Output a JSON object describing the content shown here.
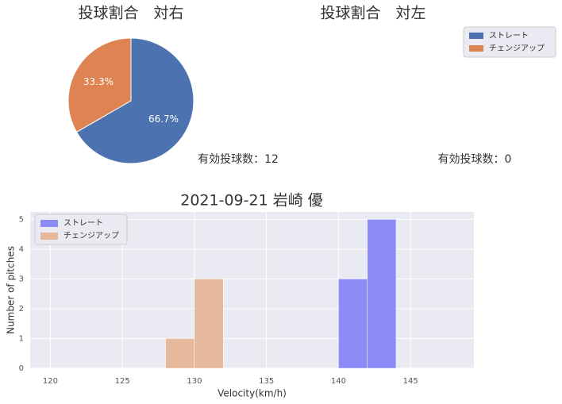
{
  "chart_data": [
    {
      "type": "pie",
      "title": "投球割合　対右",
      "categories": [
        "ストレート",
        "チェンジアップ"
      ],
      "values": [
        66.7,
        33.3
      ],
      "value_labels": [
        "66.7%",
        "33.3%"
      ],
      "colors": [
        "#4c72b0",
        "#dd8452"
      ],
      "annotation": "有効投球数：12"
    },
    {
      "type": "pie",
      "title": "投球割合　対左",
      "categories": [
        "ストレート",
        "チェンジアップ"
      ],
      "values": [
        0,
        0
      ],
      "colors": [
        "#4c72b0",
        "#dd8452"
      ],
      "annotation": "有効投球数：0",
      "legend": "upper right"
    },
    {
      "type": "histogram",
      "title": "2021-09-21 岩崎 優",
      "xlabel": "Velocity(km/h)",
      "ylabel": "Number of pitches",
      "series": [
        {
          "name": "ストレート",
          "color": "#8c8cf7",
          "bins": [
            140,
            142,
            144
          ],
          "values": [
            3,
            5
          ]
        },
        {
          "name": "チェンジアップ",
          "color": "#e6b89c",
          "bins": [
            128,
            130,
            132
          ],
          "values": [
            1,
            3
          ]
        }
      ],
      "xlim": [
        118.6,
        149.4
      ],
      "xticks": [
        120,
        125,
        130,
        135,
        140,
        145
      ],
      "ylim": [
        0,
        5.25
      ],
      "yticks": [
        0,
        1,
        2,
        3,
        4,
        5
      ],
      "grid": true,
      "legend": "upper left"
    }
  ]
}
